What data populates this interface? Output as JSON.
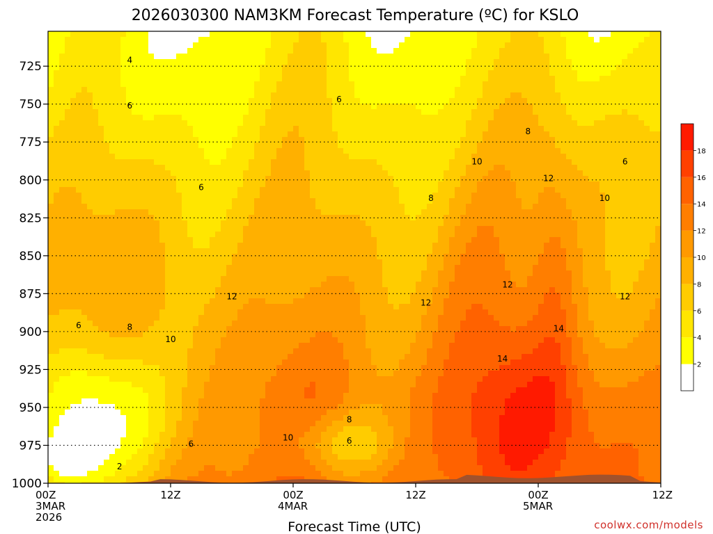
{
  "chart_data": {
    "type": "contour",
    "title": "2026030300 NAM3KM Forecast Temperature (ºC) for KSLO",
    "xlabel": "Forecast Time (UTC)",
    "ylabel": "",
    "y_axis": {
      "ticks": [
        725,
        750,
        775,
        800,
        825,
        850,
        875,
        900,
        925,
        950,
        975,
        1000
      ],
      "range": [
        1000,
        702
      ],
      "grid": "dotted"
    },
    "x_axis": {
      "ticks": [
        {
          "hour": 0,
          "label": "00Z",
          "sub1": "3MAR",
          "sub2": "2026"
        },
        {
          "hour": 12,
          "label": "12Z",
          "sub1": "",
          "sub2": ""
        },
        {
          "hour": 24,
          "label": "00Z",
          "sub1": "4MAR",
          "sub2": ""
        },
        {
          "hour": 36,
          "label": "12Z",
          "sub1": "",
          "sub2": ""
        },
        {
          "hour": 48,
          "label": "00Z",
          "sub1": "5MAR",
          "sub2": ""
        },
        {
          "hour": 60,
          "label": "12Z",
          "sub1": "",
          "sub2": ""
        }
      ],
      "range": [
        0,
        60
      ]
    },
    "contour_levels": [
      0,
      2,
      4,
      6,
      8,
      10,
      12,
      14,
      16,
      18
    ],
    "contour_labels": [
      {
        "value": "2",
        "hour": 7.0,
        "p": 989
      },
      {
        "value": "4",
        "hour": 8.0,
        "p": 721
      },
      {
        "value": "6",
        "hour": 3.0,
        "p": 896
      },
      {
        "value": "6",
        "hour": 8.0,
        "p": 751
      },
      {
        "value": "6",
        "hour": 15.0,
        "p": 805
      },
      {
        "value": "6",
        "hour": 14.0,
        "p": 974
      },
      {
        "value": "6",
        "hour": 28.5,
        "p": 747
      },
      {
        "value": "6",
        "hour": 29.5,
        "p": 972
      },
      {
        "value": "6",
        "hour": 56.5,
        "p": 788
      },
      {
        "value": "8",
        "hour": 8.0,
        "p": 897
      },
      {
        "value": "8",
        "hour": 29.5,
        "p": 958
      },
      {
        "value": "8",
        "hour": 37.5,
        "p": 812
      },
      {
        "value": "8",
        "hour": 47.0,
        "p": 768
      },
      {
        "value": "10",
        "hour": 12.0,
        "p": 905
      },
      {
        "value": "10",
        "hour": 23.5,
        "p": 970
      },
      {
        "value": "10",
        "hour": 42.0,
        "p": 788
      },
      {
        "value": "10",
        "hour": 54.5,
        "p": 812
      },
      {
        "value": "12",
        "hour": 18.0,
        "p": 877
      },
      {
        "value": "12",
        "hour": 37.0,
        "p": 881
      },
      {
        "value": "12",
        "hour": 45.0,
        "p": 869
      },
      {
        "value": "12",
        "hour": 49.0,
        "p": 799
      },
      {
        "value": "12",
        "hour": 56.5,
        "p": 877
      },
      {
        "value": "14",
        "hour": 44.5,
        "p": 918
      },
      {
        "value": "14",
        "hour": 50.0,
        "p": 898
      }
    ],
    "colorbar": {
      "levels": [
        2,
        4,
        6,
        8,
        10,
        12,
        14,
        16,
        18
      ],
      "colors": [
        "#ffffff",
        "#ffff00",
        "#ffe600",
        "#ffcc00",
        "#ffb000",
        "#ff9900",
        "#ff7e00",
        "#ff6200",
        "#ff4000",
        "#ff1a00"
      ]
    },
    "terrain_color": "#a0522d"
  },
  "credit": "coolwx.com/models"
}
